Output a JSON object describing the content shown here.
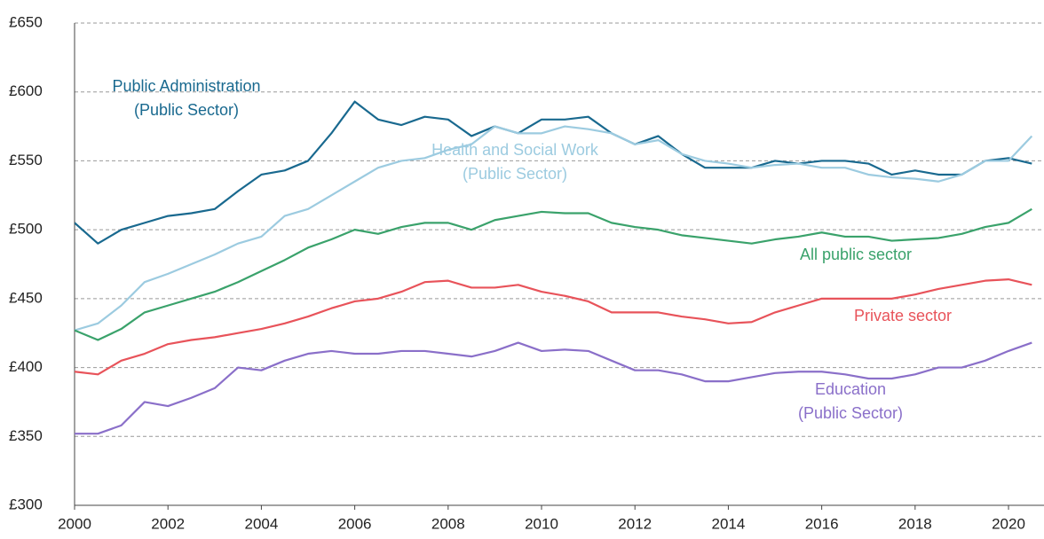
{
  "chart_data": {
    "type": "line",
    "x": [
      2000,
      2000.5,
      2001,
      2001.5,
      2002,
      2002.5,
      2003,
      2003.5,
      2004,
      2004.5,
      2005,
      2005.5,
      2006,
      2006.5,
      2007,
      2007.5,
      2008,
      2008.5,
      2009,
      2009.5,
      2010,
      2010.5,
      2011,
      2011.5,
      2012,
      2012.5,
      2013,
      2013.5,
      2014,
      2014.5,
      2015,
      2015.5,
      2016,
      2016.5,
      2017,
      2017.5,
      2018,
      2018.5,
      2019,
      2019.5,
      2020,
      2020.5
    ],
    "series": [
      {
        "name": [
          "Public Administration",
          "(Public Sector)"
        ],
        "color": "#19698f",
        "values": [
          505,
          490,
          500,
          505,
          510,
          512,
          515,
          528,
          540,
          543,
          550,
          570,
          593,
          580,
          576,
          582,
          580,
          568,
          575,
          570,
          580,
          580,
          582,
          570,
          562,
          568,
          555,
          545,
          545,
          545,
          550,
          548,
          550,
          550,
          548,
          540,
          543,
          540,
          540,
          550,
          552,
          548
        ]
      },
      {
        "name": [
          "Health and Social Work",
          "(Public Sector)"
        ],
        "color": "#9ccbe0",
        "values": [
          427,
          432,
          445,
          462,
          468,
          475,
          482,
          490,
          495,
          510,
          515,
          525,
          535,
          545,
          550,
          552,
          558,
          562,
          575,
          570,
          570,
          575,
          573,
          570,
          562,
          565,
          555,
          550,
          548,
          545,
          547,
          548,
          545,
          545,
          540,
          538,
          537,
          535,
          540,
          550,
          550,
          568
        ]
      },
      {
        "name": [
          "All public sector"
        ],
        "color": "#3aa26b",
        "values": [
          427,
          420,
          428,
          440,
          445,
          450,
          455,
          462,
          470,
          478,
          487,
          493,
          500,
          497,
          502,
          505,
          505,
          500,
          507,
          510,
          513,
          512,
          512,
          505,
          502,
          500,
          496,
          494,
          492,
          490,
          493,
          495,
          498,
          495,
          495,
          492,
          493,
          494,
          497,
          502,
          505,
          515
        ]
      },
      {
        "name": [
          "Private sector"
        ],
        "color": "#e8535a",
        "values": [
          397,
          395,
          405,
          410,
          417,
          420,
          422,
          425,
          428,
          432,
          437,
          443,
          448,
          450,
          455,
          462,
          463,
          458,
          458,
          460,
          455,
          452,
          448,
          440,
          440,
          440,
          437,
          435,
          432,
          433,
          440,
          445,
          450,
          450,
          450,
          450,
          453,
          457,
          460,
          463,
          464,
          460
        ]
      },
      {
        "name": [
          "Education",
          "(Public Sector)"
        ],
        "color": "#8a6fc9",
        "values": [
          352,
          352,
          358,
          375,
          372,
          378,
          385,
          400,
          398,
          405,
          410,
          412,
          410,
          410,
          412,
          412,
          410,
          408,
          412,
          418,
          412,
          413,
          412,
          405,
          398,
          398,
          395,
          390,
          390,
          393,
          396,
          397,
          397,
          395,
          392,
          392,
          395,
          400,
          400,
          405,
          412,
          418
        ]
      }
    ],
    "xlim": [
      2000,
      2020.76
    ],
    "xticks": [
      2000,
      2002,
      2004,
      2006,
      2008,
      2010,
      2012,
      2014,
      2016,
      2018,
      2020
    ],
    "ylim": [
      300,
      650
    ],
    "yticks": [
      {
        "value": 300,
        "label": "£300"
      },
      {
        "value": 350,
        "label": "£350"
      },
      {
        "value": 400,
        "label": "£400"
      },
      {
        "value": 450,
        "label": "£450"
      },
      {
        "value": 500,
        "label": "£500"
      },
      {
        "value": 550,
        "label": "£550"
      },
      {
        "value": 600,
        "label": "£600"
      },
      {
        "value": 650,
        "label": "£650"
      }
    ],
    "grid": true
  }
}
